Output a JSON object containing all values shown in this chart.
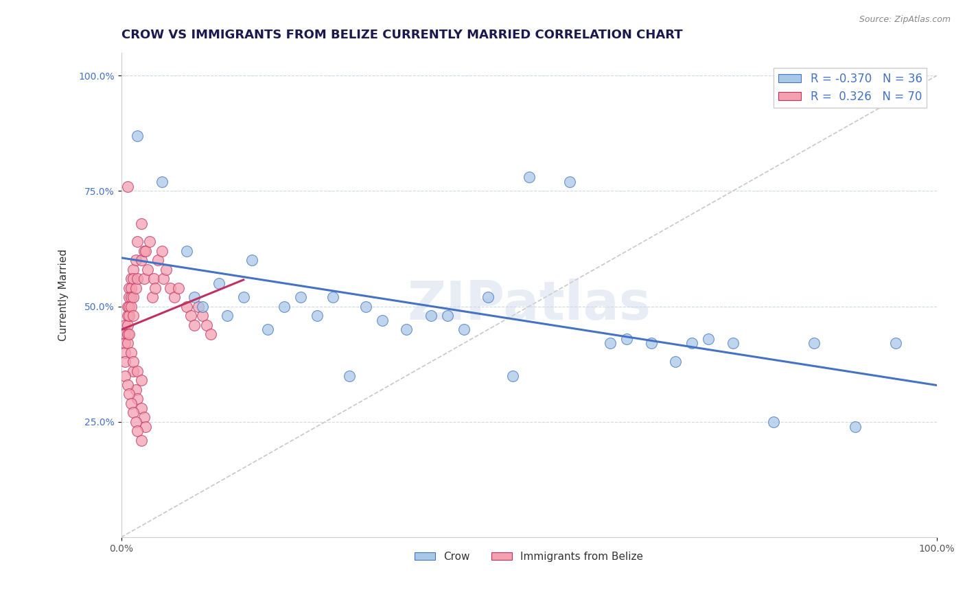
{
  "title": "CROW VS IMMIGRANTS FROM BELIZE CURRENTLY MARRIED CORRELATION CHART",
  "source": "Source: ZipAtlas.com",
  "ylabel": "Currently Married",
  "ytick_labels": [
    "25.0%",
    "50.0%",
    "75.0%",
    "100.0%"
  ],
  "ytick_values": [
    0.25,
    0.5,
    0.75,
    1.0
  ],
  "legend_crow_R": "-0.370",
  "legend_crow_N": "36",
  "legend_belize_R": "0.326",
  "legend_belize_N": "70",
  "crow_color": "#a8c8e8",
  "crow_line_color": "#4472c4",
  "belize_color": "#f4a0b0",
  "belize_line_color": "#c03060",
  "diagonal_color": "#c8c8c8",
  "crow_points_x": [
    0.02,
    0.05,
    0.08,
    0.09,
    0.1,
    0.12,
    0.13,
    0.15,
    0.16,
    0.18,
    0.2,
    0.22,
    0.24,
    0.26,
    0.28,
    0.3,
    0.32,
    0.35,
    0.38,
    0.4,
    0.42,
    0.45,
    0.48,
    0.5,
    0.55,
    0.6,
    0.62,
    0.65,
    0.68,
    0.7,
    0.72,
    0.75,
    0.8,
    0.85,
    0.9,
    0.95
  ],
  "crow_points_y": [
    0.87,
    0.77,
    0.62,
    0.52,
    0.5,
    0.55,
    0.48,
    0.52,
    0.6,
    0.45,
    0.5,
    0.52,
    0.48,
    0.52,
    0.35,
    0.5,
    0.47,
    0.45,
    0.48,
    0.48,
    0.45,
    0.52,
    0.35,
    0.78,
    0.77,
    0.42,
    0.43,
    0.42,
    0.38,
    0.42,
    0.43,
    0.42,
    0.25,
    0.42,
    0.24,
    0.42
  ],
  "belize_points_x": [
    0.005,
    0.005,
    0.005,
    0.005,
    0.005,
    0.008,
    0.008,
    0.008,
    0.008,
    0.008,
    0.01,
    0.01,
    0.01,
    0.01,
    0.012,
    0.012,
    0.012,
    0.012,
    0.015,
    0.015,
    0.015,
    0.015,
    0.018,
    0.018,
    0.02,
    0.02,
    0.025,
    0.025,
    0.028,
    0.028,
    0.03,
    0.032,
    0.035,
    0.038,
    0.04,
    0.042,
    0.045,
    0.05,
    0.052,
    0.055,
    0.06,
    0.065,
    0.07,
    0.08,
    0.085,
    0.09,
    0.095,
    0.1,
    0.105,
    0.11,
    0.015,
    0.018,
    0.02,
    0.025,
    0.028,
    0.03,
    0.008,
    0.01,
    0.012,
    0.015,
    0.02,
    0.025,
    0.005,
    0.008,
    0.01,
    0.012,
    0.015,
    0.018,
    0.02,
    0.025
  ],
  "belize_points_y": [
    0.46,
    0.44,
    0.42,
    0.4,
    0.38,
    0.5,
    0.48,
    0.46,
    0.44,
    0.42,
    0.54,
    0.52,
    0.5,
    0.48,
    0.56,
    0.54,
    0.52,
    0.5,
    0.58,
    0.56,
    0.52,
    0.48,
    0.6,
    0.54,
    0.64,
    0.56,
    0.68,
    0.6,
    0.62,
    0.56,
    0.62,
    0.58,
    0.64,
    0.52,
    0.56,
    0.54,
    0.6,
    0.62,
    0.56,
    0.58,
    0.54,
    0.52,
    0.54,
    0.5,
    0.48,
    0.46,
    0.5,
    0.48,
    0.46,
    0.44,
    0.36,
    0.32,
    0.3,
    0.28,
    0.26,
    0.24,
    0.76,
    0.44,
    0.4,
    0.38,
    0.36,
    0.34,
    0.35,
    0.33,
    0.31,
    0.29,
    0.27,
    0.25,
    0.23,
    0.21
  ]
}
